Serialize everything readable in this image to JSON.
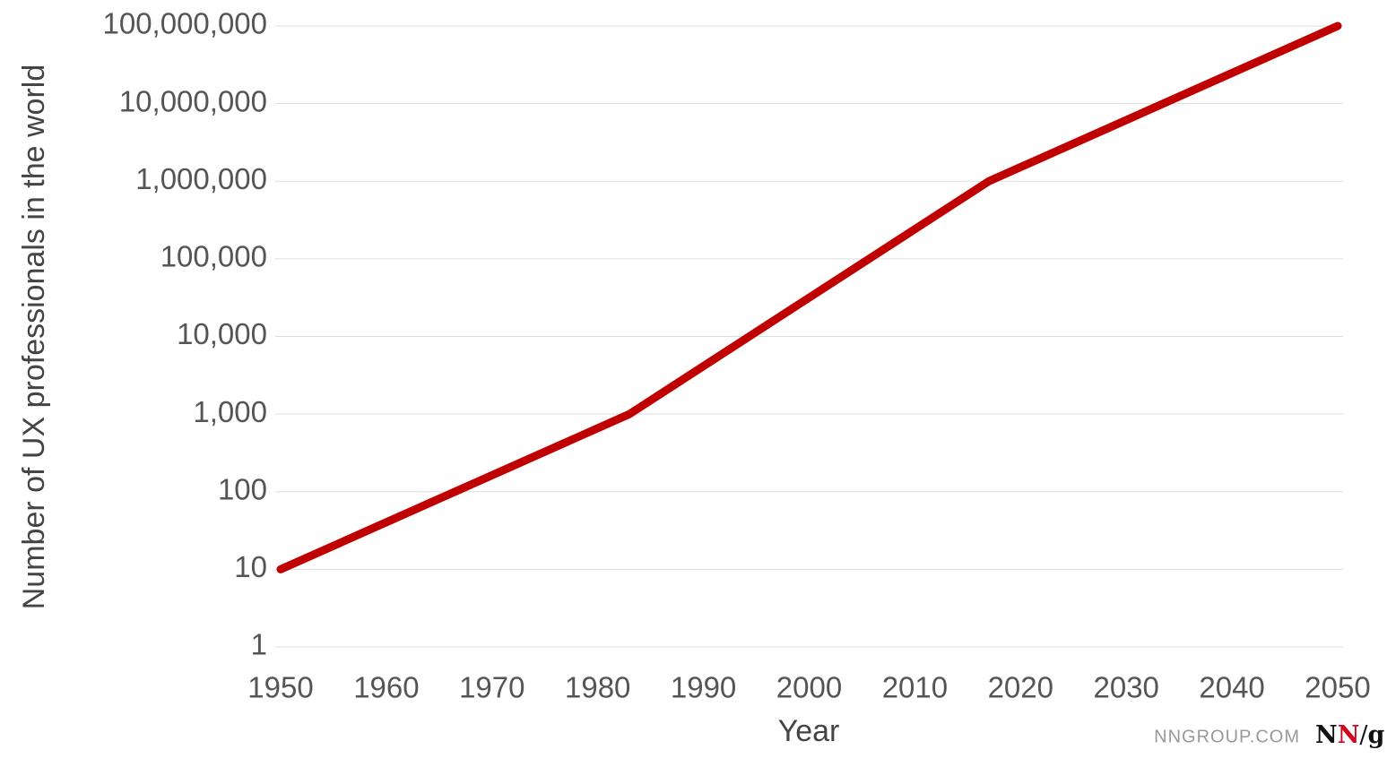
{
  "chart_data": {
    "type": "line",
    "y_label": "Number of UX professionals in the world",
    "x_label": "Year",
    "x": [
      1950,
      1983,
      2017,
      2050
    ],
    "series": [
      {
        "name": "UX professionals",
        "color": "#c00000",
        "values": [
          10,
          1000,
          1000000,
          100000000
        ]
      }
    ],
    "xlim": [
      1950,
      2050
    ],
    "xticks": [
      1950,
      1960,
      1970,
      1980,
      1990,
      2000,
      2010,
      2020,
      2030,
      2040,
      2050
    ],
    "ylim": [
      1,
      100000000
    ],
    "log_y": true,
    "grid": true,
    "yticks": [
      1,
      10,
      100,
      {
        "value": 1000,
        "label": "1,000"
      },
      {
        "value": 10000,
        "label": "10,000"
      },
      {
        "value": 100000,
        "label": "100,000"
      },
      {
        "value": 1000000,
        "label": "1,000,000"
      },
      {
        "value": 10000000,
        "label": "10,000,000"
      },
      {
        "value": 100000000,
        "label": "100,000,000"
      }
    ]
  },
  "watermark": "NNGROUP.COM",
  "logo": "NN/g"
}
